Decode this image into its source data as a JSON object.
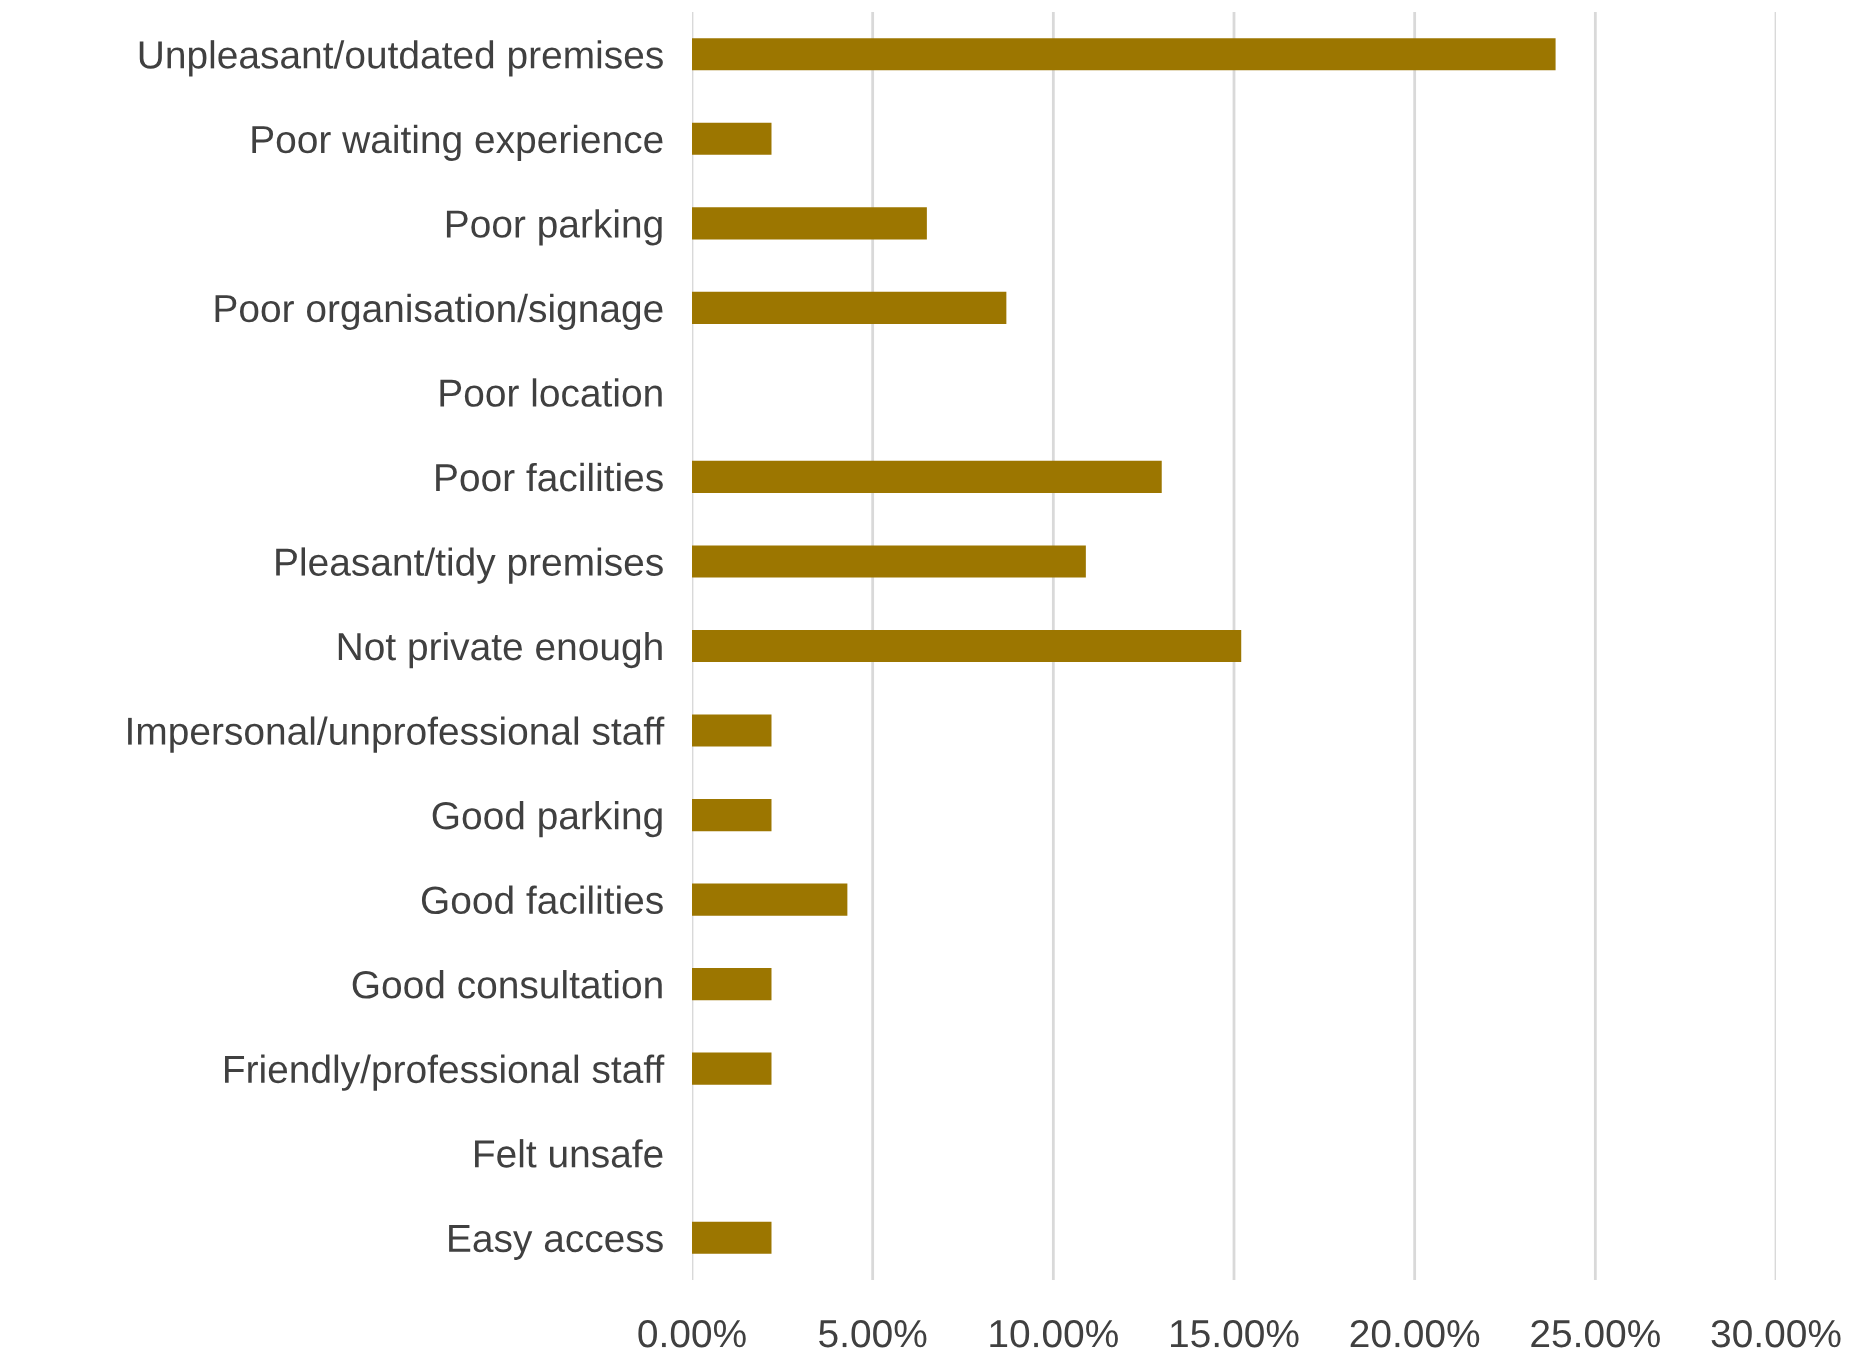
{
  "chart_data": {
    "type": "bar",
    "orientation": "horizontal",
    "categories": [
      "Unpleasant/outdated premises",
      "Poor waiting experience",
      "Poor parking",
      "Poor organisation/signage",
      "Poor location",
      "Poor facilities",
      "Pleasant/tidy premises",
      "Not private enough",
      "Impersonal/unprofessional staff",
      "Good parking",
      "Good facilities",
      "Good consultation",
      "Friendly/professional staff",
      "Felt unsafe",
      "Easy access"
    ],
    "values": [
      23.9,
      2.2,
      6.5,
      8.7,
      0,
      13.0,
      10.9,
      15.2,
      2.2,
      2.2,
      4.3,
      2.2,
      2.2,
      0,
      2.2
    ],
    "color": "#9c7600",
    "xlim": [
      0,
      30
    ],
    "xticks": [
      {
        "value": 0,
        "label": "0.00%"
      },
      {
        "value": 5,
        "label": "5.00%"
      },
      {
        "value": 10,
        "label": "10.00%"
      },
      {
        "value": 15,
        "label": "15.00%"
      },
      {
        "value": 20,
        "label": "20.00%"
      },
      {
        "value": 25,
        "label": "25.00%"
      },
      {
        "value": 30,
        "label": "30.00%"
      }
    ],
    "grid": "x"
  }
}
